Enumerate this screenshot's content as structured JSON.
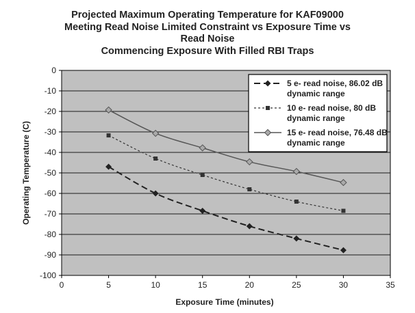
{
  "chart_data": {
    "type": "line",
    "title_lines": [
      "Projected Maximum Operating Temperature for KAF09000",
      "Meeting Read Noise Limited Constraint vs Exposure Time vs",
      "Read Noise",
      "Commencing Exposure With Filled RBI Traps"
    ],
    "xlabel": "Exposure Time (minutes)",
    "ylabel": "Operating Temperature (C)",
    "xlim": [
      0,
      35
    ],
    "ylim": [
      -100,
      0
    ],
    "x_ticks": [
      "0",
      "5",
      "10",
      "15",
      "20",
      "25",
      "30",
      "35"
    ],
    "y_ticks": [
      "0",
      "-10",
      "-20",
      "-30",
      "-40",
      "-50",
      "-60",
      "-70",
      "-80",
      "-90",
      "-100"
    ],
    "grid": "horizontal",
    "plot_background": "#c0c0c0",
    "legend_position": "top-right",
    "x": [
      5,
      10,
      15,
      20,
      25,
      30
    ],
    "series": [
      {
        "name_lines": [
          "5 e- read noise, 86.02 dB",
          "dynamic range"
        ],
        "values": [
          -47,
          -60,
          -68.5,
          -76,
          -82,
          -87.7
        ],
        "line_style": "dashed-long",
        "line_width": 2,
        "marker": "diamond",
        "color": "#222222"
      },
      {
        "name_lines": [
          "10 e- read noise, 80 dB",
          "dynamic range"
        ],
        "values": [
          -31.7,
          -43,
          -51,
          -58,
          -64,
          -68.5
        ],
        "line_style": "dashed-short",
        "line_width": 1.2,
        "marker": "square",
        "color": "#333333"
      },
      {
        "name_lines": [
          "15 e- read noise, 76.48 dB",
          "dynamic range"
        ],
        "values": [
          -19.3,
          -30.7,
          -37.8,
          -44.6,
          -49.3,
          -54.7
        ],
        "line_style": "solid",
        "line_width": 1.5,
        "marker": "diamond-open",
        "color": "#555555"
      }
    ]
  }
}
